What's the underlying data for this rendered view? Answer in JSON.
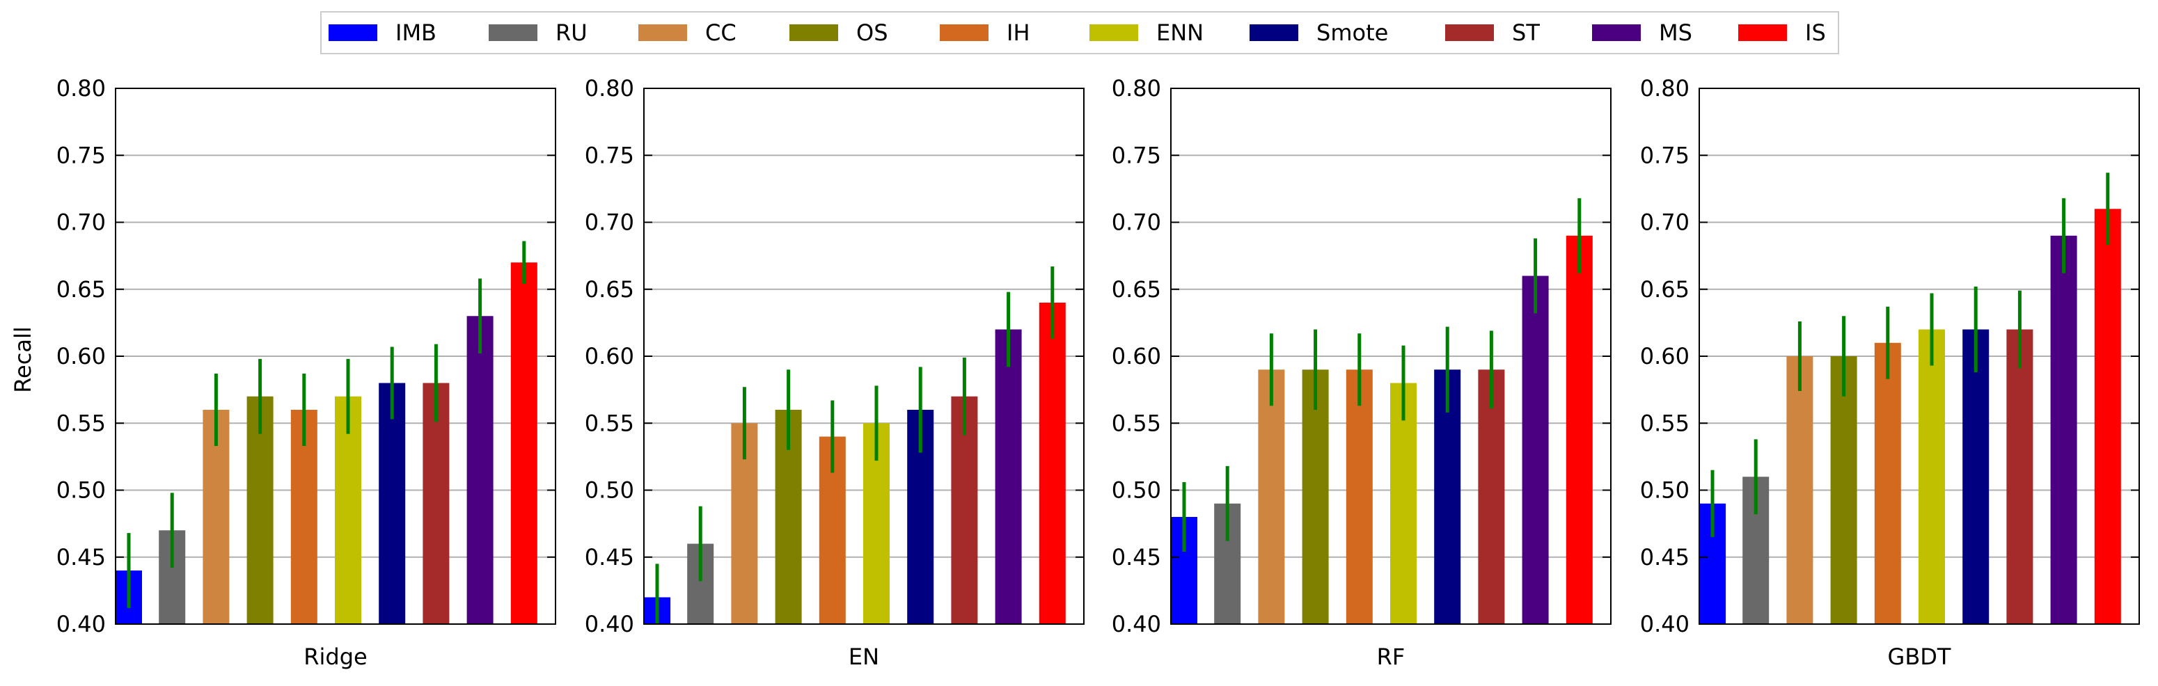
{
  "legend": {
    "items": [
      {
        "label": "IMB",
        "color": "#0000ff"
      },
      {
        "label": "RU",
        "color": "#696969"
      },
      {
        "label": "CC",
        "color": "#cd853f"
      },
      {
        "label": "OS",
        "color": "#808000"
      },
      {
        "label": "IH",
        "color": "#d2691e"
      },
      {
        "label": "ENN",
        "color": "#c0c000"
      },
      {
        "label": "Smote",
        "color": "#000080"
      },
      {
        "label": "ST",
        "color": "#a52a2a"
      },
      {
        "label": "MS",
        "color": "#4b0082"
      },
      {
        "label": "IS",
        "color": "#ff0000"
      }
    ]
  },
  "error_bar_color": "#008000",
  "chart_data": [
    {
      "type": "bar",
      "xlabel": "Ridge",
      "ylabel": "Recall",
      "ylim": [
        0.4,
        0.8
      ],
      "yticks": [
        "0.40",
        "0.45",
        "0.50",
        "0.55",
        "0.60",
        "0.65",
        "0.70",
        "0.75",
        "0.80"
      ],
      "grid": true,
      "categories": [
        "IMB",
        "RU",
        "CC",
        "OS",
        "IH",
        "ENN",
        "Smote",
        "ST",
        "MS",
        "IS"
      ],
      "values": [
        0.44,
        0.47,
        0.56,
        0.57,
        0.56,
        0.57,
        0.58,
        0.58,
        0.63,
        0.67
      ],
      "errors": [
        0.028,
        0.028,
        0.027,
        0.028,
        0.027,
        0.028,
        0.027,
        0.029,
        0.028,
        0.016
      ]
    },
    {
      "type": "bar",
      "xlabel": "EN",
      "ylabel": "",
      "ylim": [
        0.4,
        0.8
      ],
      "yticks": [
        "0.40",
        "0.45",
        "0.50",
        "0.55",
        "0.60",
        "0.65",
        "0.70",
        "0.75",
        "0.80"
      ],
      "grid": true,
      "categories": [
        "IMB",
        "RU",
        "CC",
        "OS",
        "IH",
        "ENN",
        "Smote",
        "ST",
        "MS",
        "IS"
      ],
      "values": [
        0.42,
        0.46,
        0.55,
        0.56,
        0.54,
        0.55,
        0.56,
        0.57,
        0.62,
        0.64
      ],
      "errors": [
        0.025,
        0.028,
        0.027,
        0.03,
        0.027,
        0.028,
        0.032,
        0.029,
        0.028,
        0.027
      ]
    },
    {
      "type": "bar",
      "xlabel": "RF",
      "ylabel": "",
      "ylim": [
        0.4,
        0.8
      ],
      "yticks": [
        "0.40",
        "0.45",
        "0.50",
        "0.55",
        "0.60",
        "0.65",
        "0.70",
        "0.75",
        "0.80"
      ],
      "grid": true,
      "categories": [
        "IMB",
        "RU",
        "CC",
        "OS",
        "IH",
        "ENN",
        "Smote",
        "ST",
        "MS",
        "IS"
      ],
      "values": [
        0.48,
        0.49,
        0.59,
        0.59,
        0.59,
        0.58,
        0.59,
        0.59,
        0.66,
        0.69
      ],
      "errors": [
        0.026,
        0.028,
        0.027,
        0.03,
        0.027,
        0.028,
        0.032,
        0.029,
        0.028,
        0.028
      ]
    },
    {
      "type": "bar",
      "xlabel": "GBDT",
      "ylabel": "",
      "ylim": [
        0.4,
        0.8
      ],
      "yticks": [
        "0.40",
        "0.45",
        "0.50",
        "0.55",
        "0.60",
        "0.65",
        "0.70",
        "0.75",
        "0.80"
      ],
      "grid": true,
      "categories": [
        "IMB",
        "RU",
        "CC",
        "OS",
        "IH",
        "ENN",
        "Smote",
        "ST",
        "MS",
        "IS"
      ],
      "values": [
        0.49,
        0.51,
        0.6,
        0.6,
        0.61,
        0.62,
        0.62,
        0.62,
        0.69,
        0.71
      ],
      "errors": [
        0.025,
        0.028,
        0.026,
        0.03,
        0.027,
        0.027,
        0.032,
        0.029,
        0.028,
        0.027
      ]
    }
  ]
}
